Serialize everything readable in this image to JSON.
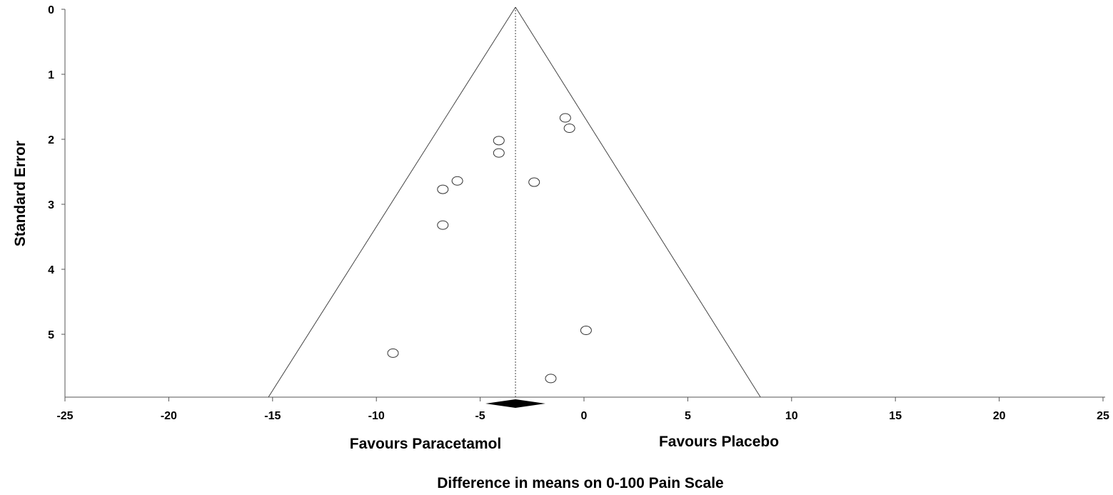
{
  "chart_data": {
    "type": "scatter",
    "subtype": "funnel-plot",
    "xlabel": "Difference in means on 0-100 Pain Scale",
    "ylabel": "Standard Error",
    "xlim": [
      -25,
      25
    ],
    "ylim": [
      0,
      6
    ],
    "y_inverted": true,
    "x_ticks": [
      -25,
      -20,
      -15,
      -10,
      -5,
      0,
      5,
      10,
      15,
      20,
      25
    ],
    "y_ticks": [
      0,
      1,
      2,
      3,
      4,
      5
    ],
    "x_tick_labels": [
      "-25",
      "-20",
      "-15",
      "-10",
      "-5",
      "0",
      "5",
      "10",
      "15",
      "20",
      "25"
    ],
    "y_tick_labels": [
      "0",
      "1",
      "2",
      "3",
      "4",
      "5"
    ],
    "pooled_estimate": -3.3,
    "funnel_lower_at_max_se": -15.2,
    "funnel_upper_at_max_se": 8.5,
    "points": [
      {
        "x": -0.9,
        "y": 1.67
      },
      {
        "x": -0.7,
        "y": 1.83
      },
      {
        "x": -4.1,
        "y": 2.02
      },
      {
        "x": -4.1,
        "y": 2.21
      },
      {
        "x": -6.1,
        "y": 2.64
      },
      {
        "x": -6.8,
        "y": 2.77
      },
      {
        "x": -2.4,
        "y": 2.66
      },
      {
        "x": -6.8,
        "y": 3.32
      },
      {
        "x": 0.1,
        "y": 4.94
      },
      {
        "x": -9.2,
        "y": 5.29
      },
      {
        "x": -1.6,
        "y": 5.68
      }
    ],
    "annotations": {
      "left": "Favours Paracetamol",
      "right": "Favours Placebo"
    },
    "grid": false
  }
}
